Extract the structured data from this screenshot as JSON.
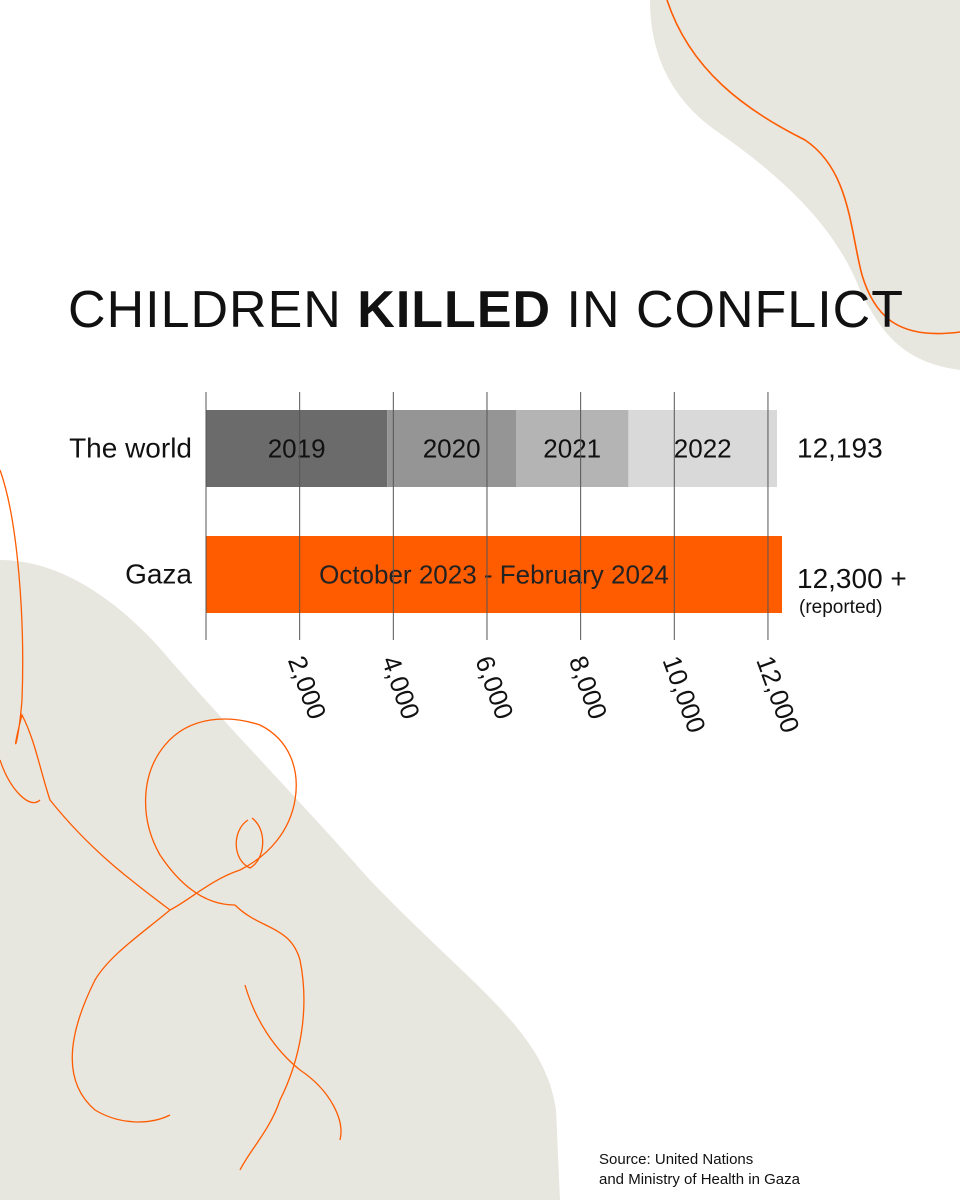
{
  "title": {
    "part1": "CHILDREN ",
    "part2_bold": "KILLED",
    "part3": " IN CONFLICT"
  },
  "source": {
    "line1": "Source: United Nations",
    "line2": "and Ministry of Health in Gaza"
  },
  "colors": {
    "background": "#ffffff",
    "blob": "#e7e6df",
    "accent": "#ff5c00",
    "gaza_bar": "#ff5c00",
    "gridline": "#555555"
  },
  "chart_data": {
    "type": "bar",
    "orientation": "horizontal",
    "stacked": true,
    "categories": [
      "The world",
      "Gaza"
    ],
    "x_ticks": [
      {
        "value": 2000,
        "label": "2,000"
      },
      {
        "value": 4000,
        "label": "4,000"
      },
      {
        "value": 6000,
        "label": "6,000"
      },
      {
        "value": 8000,
        "label": "8,000"
      },
      {
        "value": 10000,
        "label": "10,000"
      },
      {
        "value": 12000,
        "label": "12,000"
      }
    ],
    "xlim": [
      0,
      12193
    ],
    "grid": true,
    "rows": [
      {
        "category": "The world",
        "total_label": "12,193",
        "total_value": 12193,
        "segments": [
          {
            "label": "2019",
            "value": 3870,
            "color": "#6b6b6b"
          },
          {
            "label": "2020",
            "value": 2750,
            "color": "#959595"
          },
          {
            "label": "2021",
            "value": 2400,
            "color": "#b4b4b4"
          },
          {
            "label": "2022",
            "value": 3173,
            "color": "#d9d9d9"
          }
        ]
      },
      {
        "category": "Gaza",
        "total_label": "12,300 +",
        "total_note": "(reported)",
        "total_value": 12300,
        "segments": [
          {
            "label": "October 2023 - February 2024",
            "value": 12300,
            "color": "#ff5c00"
          }
        ]
      }
    ]
  }
}
